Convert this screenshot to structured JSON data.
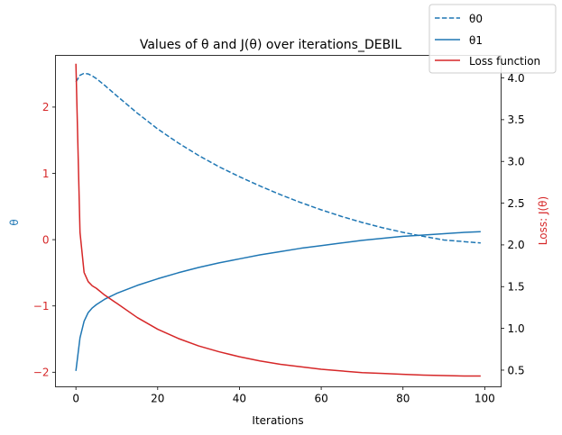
{
  "chart_data": {
    "type": "line",
    "title": "Values of θ and J(θ) over iterations_DEBIL",
    "xlabel": "Iterations",
    "ylabel_left": "θ",
    "ylabel_right": "Loss: J(θ)",
    "xlim": [
      -5,
      104
    ],
    "ylim_left": [
      -2.22,
      2.78
    ],
    "ylim_right": [
      0.3,
      4.27
    ],
    "x_ticks": [
      0,
      20,
      40,
      60,
      80,
      100
    ],
    "y_left_ticks": [
      -2,
      -1,
      0,
      1,
      2
    ],
    "y_left_tick_labels": [
      "−2",
      "−1",
      "0",
      "1",
      "2"
    ],
    "y_right_ticks": [
      0.5,
      1.0,
      1.5,
      2.0,
      2.5,
      3.0,
      3.5,
      4.0
    ],
    "y_right_tick_labels": [
      "0.5",
      "1.0",
      "1.5",
      "2.0",
      "2.5",
      "3.0",
      "3.5",
      "4.0"
    ],
    "grid": false,
    "legend_placement": "top-right",
    "series": [
      {
        "name": "θ0",
        "axis": "left",
        "color": "#1f77b4",
        "dash": "dashed",
        "x": [
          0,
          1,
          2,
          3,
          4,
          5,
          7,
          10,
          15,
          20,
          25,
          30,
          35,
          40,
          45,
          50,
          55,
          60,
          65,
          70,
          75,
          80,
          85,
          90,
          95,
          99
        ],
        "y": [
          2.38,
          2.48,
          2.51,
          2.5,
          2.47,
          2.43,
          2.33,
          2.17,
          1.91,
          1.67,
          1.46,
          1.27,
          1.1,
          0.95,
          0.81,
          0.68,
          0.56,
          0.45,
          0.35,
          0.26,
          0.18,
          0.11,
          0.05,
          -0.005,
          -0.03,
          -0.05
        ]
      },
      {
        "name": "θ1",
        "axis": "left",
        "color": "#1f77b4",
        "dash": "solid",
        "x": [
          0,
          1,
          2,
          3,
          4,
          5,
          7,
          10,
          15,
          20,
          25,
          30,
          35,
          40,
          45,
          50,
          55,
          60,
          65,
          70,
          75,
          80,
          85,
          90,
          95,
          99
        ],
        "y": [
          -1.98,
          -1.48,
          -1.23,
          -1.1,
          -1.03,
          -0.98,
          -0.9,
          -0.81,
          -0.69,
          -0.59,
          -0.5,
          -0.42,
          -0.35,
          -0.29,
          -0.23,
          -0.18,
          -0.13,
          -0.09,
          -0.05,
          -0.01,
          0.02,
          0.05,
          0.07,
          0.09,
          0.11,
          0.12
        ]
      },
      {
        "name": "Loss function",
        "axis": "right",
        "color": "#d62728",
        "dash": "solid",
        "x": [
          0,
          1,
          2,
          3,
          4,
          5,
          7,
          10,
          15,
          20,
          25,
          30,
          35,
          40,
          45,
          50,
          55,
          60,
          65,
          70,
          75,
          80,
          85,
          90,
          95,
          99
        ],
        "y": [
          4.17,
          2.15,
          1.67,
          1.56,
          1.51,
          1.48,
          1.4,
          1.3,
          1.13,
          0.99,
          0.88,
          0.79,
          0.72,
          0.66,
          0.61,
          0.57,
          0.54,
          0.51,
          0.49,
          0.47,
          0.46,
          0.45,
          0.44,
          0.435,
          0.43,
          0.43
        ]
      }
    ]
  }
}
